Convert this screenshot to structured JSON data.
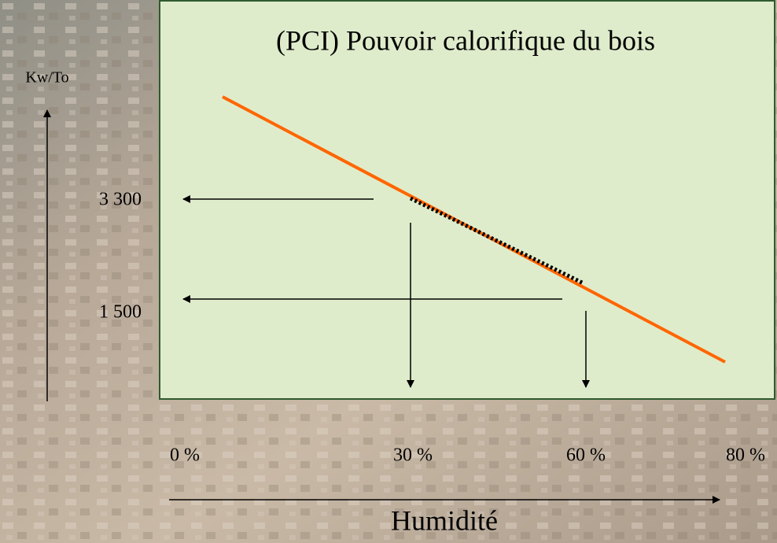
{
  "title": "(PCI) Pouvoir calorifique du bois",
  "y_axis": {
    "label": "Kw/To",
    "labels": [
      "3 300",
      "1 500"
    ]
  },
  "x_axis": {
    "label": "Humidité",
    "labels": [
      "0 %",
      "30 %",
      "60 %",
      "80 %"
    ]
  }
}
